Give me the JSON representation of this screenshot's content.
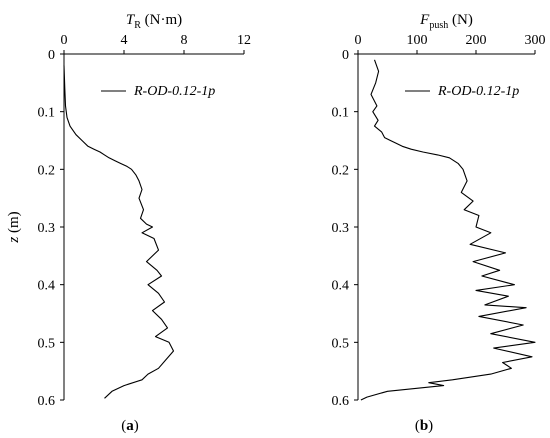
{
  "chart_data": [
    {
      "type": "line",
      "panel_label": "(a)",
      "xlabel_main": "T",
      "xlabel_sub": "R",
      "xlabel_unit": " (N·m)",
      "ylabel": "z (m)",
      "xlim": [
        0,
        12
      ],
      "ylim": [
        0,
        0.6
      ],
      "xticks": [
        "0",
        "4",
        "8",
        "12"
      ],
      "yticks": [
        "0",
        "0.1",
        "0.2",
        "0.3",
        "0.4",
        "0.5",
        "0.6"
      ],
      "x_axis_position": "top",
      "y_inverted": true,
      "grid": false,
      "legend_position": "top-right",
      "series": [
        {
          "name": "R-OD-0.12-1p",
          "color": "#000000",
          "x": [
            0.0,
            0.05,
            0.1,
            0.2,
            0.4,
            0.8,
            1.2,
            1.6,
            2.0,
            2.4,
            2.7,
            3.0,
            3.4,
            3.8,
            4.2,
            4.5,
            4.8,
            5.0,
            5.2,
            5.0,
            5.3,
            5.1,
            5.5,
            5.9,
            5.2,
            6.0,
            6.3,
            5.5,
            6.2,
            6.5,
            5.6,
            6.3,
            6.7,
            5.9,
            6.5,
            6.9,
            6.1,
            7.0,
            7.3,
            6.8,
            6.3,
            5.6,
            5.2,
            4.0,
            3.2,
            2.7
          ],
          "y": [
            0.02,
            0.06,
            0.09,
            0.11,
            0.125,
            0.14,
            0.15,
            0.16,
            0.165,
            0.17,
            0.175,
            0.18,
            0.185,
            0.19,
            0.195,
            0.2,
            0.21,
            0.22,
            0.235,
            0.25,
            0.27,
            0.285,
            0.295,
            0.3,
            0.31,
            0.32,
            0.34,
            0.36,
            0.375,
            0.385,
            0.4,
            0.415,
            0.43,
            0.445,
            0.46,
            0.475,
            0.49,
            0.5,
            0.515,
            0.53,
            0.545,
            0.555,
            0.565,
            0.575,
            0.585,
            0.597
          ]
        }
      ]
    },
    {
      "type": "line",
      "panel_label": "(b)",
      "xlabel_main": "F",
      "xlabel_sub": "push",
      "xlabel_unit": " (N)",
      "ylabel": "",
      "xlim": [
        0,
        300
      ],
      "ylim": [
        0,
        0.6
      ],
      "xticks": [
        "0",
        "100",
        "200",
        "300"
      ],
      "yticks": [
        "0",
        "0.1",
        "0.2",
        "0.3",
        "0.4",
        "0.5",
        "0.6"
      ],
      "x_axis_position": "top",
      "y_inverted": true,
      "grid": false,
      "legend_position": "top-right",
      "series": [
        {
          "name": "R-OD-0.12-1p",
          "color": "#000000",
          "x": [
            28,
            35,
            30,
            22,
            32,
            25,
            34,
            28,
            40,
            45,
            55,
            65,
            75,
            90,
            110,
            135,
            155,
            170,
            178,
            185,
            175,
            195,
            180,
            205,
            200,
            225,
            190,
            250,
            195,
            240,
            210,
            265,
            200,
            255,
            215,
            285,
            205,
            280,
            225,
            300,
            230,
            295,
            245,
            260,
            225,
            160,
            120,
            145,
            50,
            15,
            5
          ],
          "y": [
            0.01,
            0.03,
            0.05,
            0.07,
            0.09,
            0.1,
            0.115,
            0.125,
            0.135,
            0.145,
            0.15,
            0.155,
            0.16,
            0.165,
            0.17,
            0.175,
            0.18,
            0.19,
            0.2,
            0.22,
            0.24,
            0.255,
            0.27,
            0.28,
            0.3,
            0.31,
            0.33,
            0.345,
            0.36,
            0.375,
            0.385,
            0.4,
            0.41,
            0.42,
            0.435,
            0.44,
            0.455,
            0.47,
            0.485,
            0.5,
            0.51,
            0.525,
            0.535,
            0.545,
            0.555,
            0.565,
            0.57,
            0.575,
            0.585,
            0.595,
            0.6
          ]
        }
      ]
    }
  ]
}
